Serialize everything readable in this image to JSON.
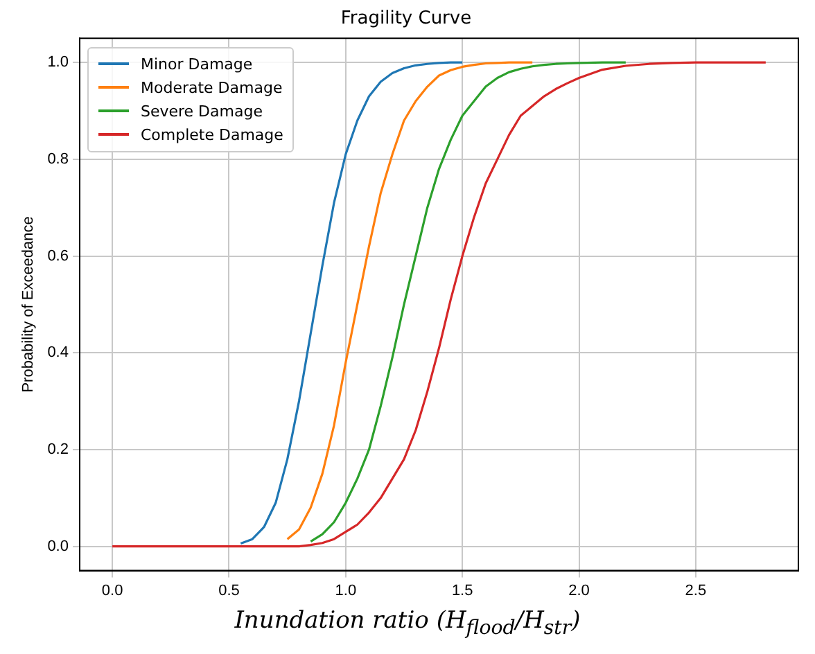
{
  "chart_data": {
    "type": "line",
    "title": "Fragility Curve",
    "xlabel": "Inundation ratio (H$_{flood}$/H$_{str}$)",
    "ylabel": "Probability of Exceedance",
    "x": [
      0,
      0.4,
      0.45,
      0.5,
      0.55,
      0.6,
      0.65,
      0.7,
      0.75,
      0.8,
      0.85,
      0.9,
      0.95,
      1.0,
      1.05,
      1.1,
      1.15,
      1.2,
      1.25,
      1.3,
      1.35,
      1.4,
      1.45,
      1.5,
      1.55,
      1.6,
      1.65,
      1.7,
      1.75,
      1.8,
      1.85,
      1.9,
      1.95,
      2.0,
      2.1,
      2.2,
      2.3,
      2.4,
      2.5,
      2.8
    ],
    "series": [
      {
        "name": "Minor Damage",
        "color": "#1f77b4",
        "x": [
          0.55,
          0.6,
          0.65,
          0.7,
          0.75,
          0.8,
          0.85,
          0.9,
          0.95,
          1.0,
          1.05,
          1.1,
          1.15,
          1.2,
          1.25,
          1.3,
          1.35,
          1.4,
          1.45,
          1.5
        ],
        "values": [
          0.006,
          0.015,
          0.04,
          0.09,
          0.18,
          0.3,
          0.44,
          0.58,
          0.71,
          0.81,
          0.88,
          0.93,
          0.96,
          0.978,
          0.988,
          0.994,
          0.997,
          0.999,
          1,
          1
        ]
      },
      {
        "name": "Moderate Damage",
        "color": "#ff7f0e",
        "x": [
          0.75,
          0.8,
          0.85,
          0.9,
          0.95,
          1.0,
          1.05,
          1.1,
          1.15,
          1.2,
          1.25,
          1.3,
          1.35,
          1.4,
          1.45,
          1.5,
          1.55,
          1.6,
          1.65,
          1.7,
          1.75,
          1.8
        ],
        "values": [
          0.015,
          0.035,
          0.08,
          0.15,
          0.25,
          0.38,
          0.5,
          0.62,
          0.73,
          0.81,
          0.88,
          0.92,
          0.95,
          0.973,
          0.984,
          0.991,
          0.995,
          0.998,
          0.999,
          1,
          1,
          1
        ]
      },
      {
        "name": "Severe Damage",
        "color": "#2ca02c",
        "x": [
          0.85,
          0.9,
          0.95,
          1.0,
          1.05,
          1.1,
          1.15,
          1.2,
          1.25,
          1.3,
          1.35,
          1.4,
          1.45,
          1.5,
          1.55,
          1.6,
          1.65,
          1.7,
          1.75,
          1.8,
          1.85,
          1.9,
          1.95,
          2.0,
          2.1,
          2.2
        ],
        "values": [
          0.01,
          0.025,
          0.05,
          0.09,
          0.14,
          0.2,
          0.29,
          0.39,
          0.5,
          0.6,
          0.7,
          0.78,
          0.84,
          0.89,
          0.92,
          0.95,
          0.968,
          0.98,
          0.987,
          0.992,
          0.995,
          0.997,
          0.998,
          0.999,
          1,
          1
        ]
      },
      {
        "name": "Complete Damage",
        "color": "#d62728",
        "values": [
          0,
          0,
          0,
          0,
          0,
          0,
          0,
          0,
          0,
          0,
          0.003,
          0.007,
          0.015,
          0.03,
          0.045,
          0.07,
          0.1,
          0.14,
          0.18,
          0.24,
          0.32,
          0.41,
          0.51,
          0.6,
          0.68,
          0.75,
          0.8,
          0.85,
          0.89,
          0.91,
          0.93,
          0.945,
          0.957,
          0.968,
          0.985,
          0.993,
          0.997,
          0.999,
          1,
          1
        ]
      }
    ],
    "xlim": [
      -0.14,
      2.94
    ],
    "xticks": [
      {
        "value": 0,
        "label": "0.0"
      },
      0.5,
      {
        "value": 1,
        "label": "1.0"
      },
      1.5,
      {
        "value": 2,
        "label": "2.0"
      },
      2.5
    ],
    "ylim": [
      -0.05,
      1.05
    ],
    "yticks": [
      {
        "value": 0,
        "label": "0.0"
      },
      0.2,
      0.4,
      0.6,
      0.8,
      {
        "value": 1,
        "label": "1.0"
      }
    ],
    "grid": true,
    "legend": "top left",
    "marker": "none",
    "line_style": "solid"
  }
}
